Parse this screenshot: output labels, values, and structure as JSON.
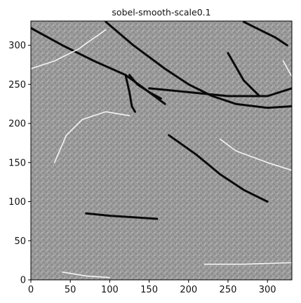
{
  "chart_data": {
    "type": "heatmap",
    "title": "sobel-smooth-scale0.1",
    "xlabel": "",
    "ylabel": "",
    "xlim": [
      0,
      331
    ],
    "ylim": [
      0,
      331
    ],
    "origin": "lower",
    "colormap": "gray",
    "grid": false,
    "x_ticks": [
      0,
      50,
      100,
      150,
      200,
      250,
      300
    ],
    "y_ticks": [
      0,
      50,
      100,
      150,
      200,
      250,
      300
    ],
    "x_tick_labels": [
      "0",
      "50",
      "100",
      "150",
      "200",
      "250",
      "300"
    ],
    "y_tick_labels": [
      "0",
      "50",
      "100",
      "150",
      "200",
      "250",
      "300"
    ],
    "image_description_strokes": [
      {
        "tone": "dark",
        "points": [
          [
            0,
            322
          ],
          [
            40,
            300
          ],
          [
            80,
            280
          ],
          [
            120,
            262
          ],
          [
            150,
            240
          ],
          [
            170,
            225
          ]
        ]
      },
      {
        "tone": "dark",
        "points": [
          [
            95,
            330
          ],
          [
            130,
            300
          ],
          [
            170,
            270
          ],
          [
            200,
            250
          ],
          [
            230,
            235
          ],
          [
            260,
            225
          ],
          [
            300,
            220
          ],
          [
            331,
            222
          ]
        ]
      },
      {
        "tone": "dark",
        "points": [
          [
            125,
            262
          ],
          [
            135,
            250
          ],
          [
            150,
            240
          ],
          [
            165,
            232
          ]
        ]
      },
      {
        "tone": "dark",
        "points": [
          [
            120,
            262
          ],
          [
            125,
            240
          ],
          [
            128,
            222
          ],
          [
            132,
            215
          ]
        ]
      },
      {
        "tone": "dark",
        "points": [
          [
            150,
            245
          ],
          [
            200,
            240
          ],
          [
            250,
            235
          ],
          [
            300,
            235
          ],
          [
            331,
            245
          ]
        ]
      },
      {
        "tone": "dark",
        "points": [
          [
            175,
            185
          ],
          [
            210,
            160
          ],
          [
            240,
            135
          ],
          [
            270,
            115
          ],
          [
            300,
            100
          ]
        ]
      },
      {
        "tone": "dark",
        "points": [
          [
            270,
            330
          ],
          [
            290,
            320
          ],
          [
            310,
            310
          ],
          [
            325,
            300
          ]
        ]
      },
      {
        "tone": "dark",
        "points": [
          [
            70,
            85
          ],
          [
            100,
            82
          ],
          [
            130,
            80
          ],
          [
            160,
            78
          ]
        ]
      },
      {
        "tone": "dark",
        "points": [
          [
            250,
            290
          ],
          [
            270,
            255
          ],
          [
            290,
            235
          ]
        ]
      },
      {
        "tone": "light",
        "points": [
          [
            0,
            270
          ],
          [
            30,
            280
          ],
          [
            60,
            295
          ],
          [
            95,
            320
          ]
        ]
      },
      {
        "tone": "light",
        "points": [
          [
            30,
            150
          ],
          [
            45,
            185
          ],
          [
            65,
            205
          ],
          [
            95,
            215
          ],
          [
            125,
            210
          ]
        ]
      },
      {
        "tone": "light",
        "points": [
          [
            320,
            280
          ],
          [
            331,
            260
          ]
        ]
      },
      {
        "tone": "light",
        "points": [
          [
            240,
            180
          ],
          [
            260,
            165
          ],
          [
            300,
            150
          ],
          [
            331,
            140
          ]
        ]
      },
      {
        "tone": "light",
        "points": [
          [
            40,
            10
          ],
          [
            70,
            5
          ],
          [
            100,
            3
          ]
        ]
      },
      {
        "tone": "light",
        "points": [
          [
            220,
            20
          ],
          [
            270,
            20
          ],
          [
            331,
            22
          ]
        ]
      }
    ]
  }
}
